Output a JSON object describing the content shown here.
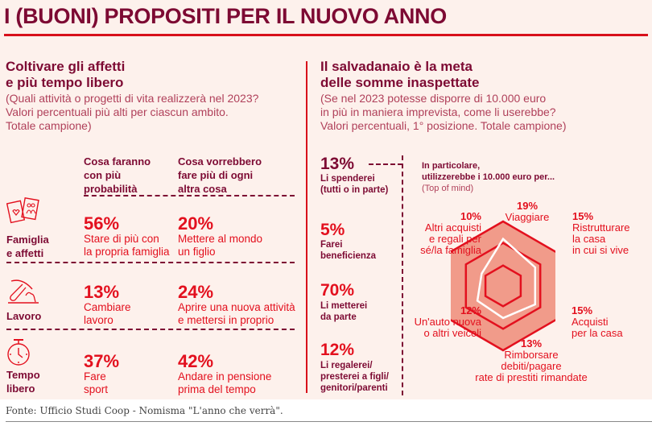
{
  "title": "I (BUONI) PROPOSITI PER IL NUOVO ANNO",
  "left": {
    "heading_line1": "Coltivare gli affetti",
    "heading_line2": "e più tempo libero",
    "sub_line1": "(Quali attività o progetti di vita realizzerà nel 2023?",
    "sub_line2": "Valori percentuali più alti per ciascun ambito.",
    "sub_line3": "Totale campione)",
    "col1_head": [
      "Cosa faranno",
      "con più",
      "probabilità"
    ],
    "col2_head": [
      "Cosa vorrebbero",
      "fare più di ogni",
      "altra cosa"
    ],
    "rows": [
      {
        "category": [
          "Famiglia",
          "e affetti"
        ],
        "icon": "family-photos-icon",
        "likely_pct": "56%",
        "likely_desc": [
          "Stare di più con",
          "la propria famiglia"
        ],
        "wish_pct": "20%",
        "wish_desc": [
          "Mettere al mondo",
          "un figlio"
        ]
      },
      {
        "category": [
          "Lavoro"
        ],
        "icon": "pickaxe-icon",
        "likely_pct": "13%",
        "likely_desc": [
          "Cambiare",
          "lavoro"
        ],
        "wish_pct": "24%",
        "wish_desc": [
          "Aprire una nuova attività",
          "e mettersi in proprio"
        ]
      },
      {
        "category": [
          "Tempo",
          "libero"
        ],
        "icon": "stopwatch-icon",
        "likely_pct": "37%",
        "likely_desc": [
          "Fare",
          "sport"
        ],
        "wish_pct": "42%",
        "wish_desc": [
          "Andare in pensione",
          "prima del tempo"
        ]
      }
    ]
  },
  "right": {
    "heading_line1": "Il salvadanaio è la meta",
    "heading_line2": "delle somme inaspettate",
    "sub_line1": "(Se nel 2023 potesse disporre di 10.000 euro",
    "sub_line2": "in più in maniera imprevista, come li userebbe?",
    "sub_line3": "Valori percentuali, 1° posizione. Totale campione)",
    "uses": [
      {
        "pct": "13%",
        "label": [
          "Li spenderei",
          "(tutti o in parte)"
        ],
        "color": "#7d0a33"
      },
      {
        "pct": "5%",
        "label": [
          "Farei",
          "beneficienza"
        ],
        "color": "#e3101e"
      },
      {
        "pct": "70%",
        "label": [
          "Li metterei",
          "da parte"
        ],
        "color": "#e3101e"
      },
      {
        "pct": "12%",
        "label": [
          "Li regalerei/",
          "presterei a figli/",
          "genitori/parenti"
        ],
        "color": "#e3101e"
      }
    ],
    "detail_head": [
      "In particolare,",
      "utilizzerebbe i 10.000 euro per..."
    ],
    "detail_note": "(Top of mind)"
  },
  "chart_data": {
    "type": "radar",
    "title": "In particolare, utilizzerebbe i 10.000 euro per... (Top of mind)",
    "categories": [
      "Viaggiare",
      "Ristrutturare la casa in cui si vive",
      "Acquisti per la casa",
      "Rimborsare debiti/pagare rate di prestiti rimandate",
      "Un'auto nuova o altri veicoli",
      "Altri acquisti e regali per sé/la famiglia"
    ],
    "values": [
      19,
      15,
      15,
      13,
      12,
      10
    ],
    "unit": "%",
    "labels": [
      {
        "pct": "19%",
        "text": [
          "Viaggiare"
        ]
      },
      {
        "pct": "15%",
        "text": [
          "Ristrutturare",
          "la casa",
          "in cui si vive"
        ]
      },
      {
        "pct": "15%",
        "text": [
          "Acquisti",
          "per la casa"
        ]
      },
      {
        "pct": "13%",
        "text": [
          "Rimborsare",
          "debiti/pagare",
          "rate di prestiti rimandate"
        ]
      },
      {
        "pct": "12%",
        "text": [
          "Un'auto nuova",
          "o altri veicoli"
        ]
      },
      {
        "pct": "10%",
        "text": [
          "Altri acquisti",
          "e regali per",
          "sé/la famiglia"
        ]
      }
    ],
    "rmax": 30,
    "grid_levels": [
      10,
      20,
      30
    ]
  },
  "source": "Fonte: Ufficio Studi Coop - Nomisma \"L'anno che verrà\"."
}
